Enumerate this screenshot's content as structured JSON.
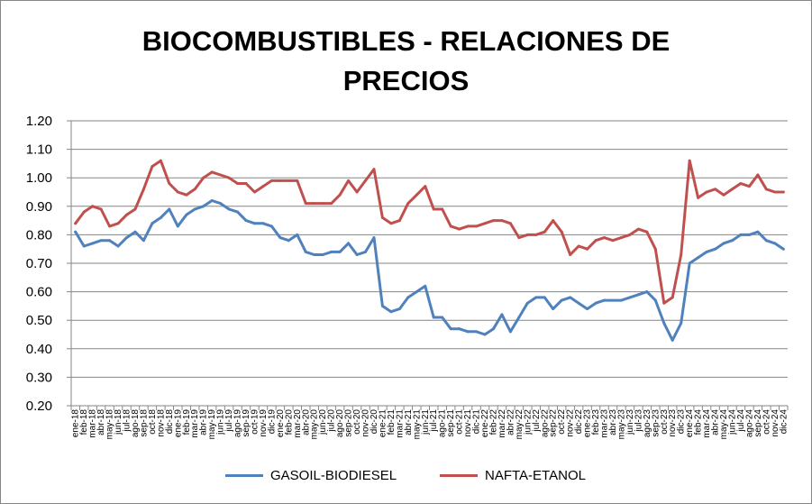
{
  "chart_data": {
    "type": "line",
    "title_line1": "BIOCOMBUSTIBLES - RELACIONES DE",
    "title_line2": "PRECIOS",
    "xlabel": "",
    "ylabel": "",
    "ylim": [
      0.2,
      1.2
    ],
    "yticks": [
      "1.20",
      "1.10",
      "1.00",
      "0.90",
      "0.80",
      "0.70",
      "0.60",
      "0.50",
      "0.40",
      "0.30",
      "0.20"
    ],
    "grid": true,
    "legend_position": "bottom",
    "categories": [
      "ene-18",
      "feb-18",
      "mar-18",
      "abr-18",
      "may-18",
      "jun-18",
      "jul-18",
      "ago-18",
      "sep-18",
      "oct-18",
      "nov-18",
      "dic-18",
      "ene-19",
      "feb-19",
      "mar-19",
      "abr-19",
      "may-19",
      "jun-19",
      "jul-19",
      "ago-19",
      "sep-19",
      "oct-19",
      "nov-19",
      "dic-19",
      "ene-20",
      "feb-20",
      "mar-20",
      "abr-20",
      "may-20",
      "jun-20",
      "jul-20",
      "ago-20",
      "sep-20",
      "oct-20",
      "nov-20",
      "dic-20",
      "ene-21",
      "feb-21",
      "mar-21",
      "abr-21",
      "may-21",
      "jun-21",
      "jul-21",
      "ago-21",
      "sep-21",
      "oct-21",
      "nov-21",
      "dic-21",
      "ene-22",
      "feb-22",
      "mar-22",
      "abr-22",
      "may-22",
      "jun-22",
      "jul-22",
      "ago-22",
      "sep-22",
      "oct-22",
      "nov-22",
      "dic-22",
      "ene-23",
      "feb-23",
      "mar-23",
      "abr-23",
      "may-23",
      "jun-23",
      "jul-23",
      "ago-23",
      "sep-23",
      "oct-23",
      "nov-23",
      "dic-23",
      "ene-24",
      "feb-24",
      "mar-24",
      "abr-24",
      "may-24",
      "jun-24",
      "jul-24",
      "ago-24",
      "sep-24",
      "oct-24",
      "nov-24",
      "dic-24"
    ],
    "series": [
      {
        "name": "GASOIL-BIODIESEL",
        "color": "#4F81BD",
        "values": [
          0.81,
          0.76,
          0.77,
          0.78,
          0.78,
          0.76,
          0.79,
          0.81,
          0.78,
          0.84,
          0.86,
          0.89,
          0.83,
          0.87,
          0.89,
          0.9,
          0.92,
          0.91,
          0.89,
          0.88,
          0.85,
          0.84,
          0.84,
          0.83,
          0.79,
          0.78,
          0.8,
          0.74,
          0.73,
          0.73,
          0.74,
          0.74,
          0.77,
          0.73,
          0.74,
          0.79,
          0.55,
          0.53,
          0.54,
          0.58,
          0.6,
          0.62,
          0.51,
          0.51,
          0.47,
          0.47,
          0.46,
          0.46,
          0.45,
          0.47,
          0.52,
          0.46,
          0.51,
          0.56,
          0.58,
          0.58,
          0.54,
          0.57,
          0.58,
          0.56,
          0.54,
          0.56,
          0.57,
          0.57,
          0.57,
          0.58,
          0.59,
          0.6,
          0.57,
          0.49,
          0.43,
          0.49,
          0.7,
          0.72,
          0.74,
          0.75,
          0.77,
          0.78,
          0.8,
          0.8,
          0.81,
          0.78,
          0.77,
          0.75
        ]
      },
      {
        "name": "NAFTA-ETANOL",
        "color": "#C0504D",
        "values": [
          0.84,
          0.88,
          0.9,
          0.89,
          0.83,
          0.84,
          0.87,
          0.89,
          0.96,
          1.04,
          1.06,
          0.98,
          0.95,
          0.94,
          0.96,
          1.0,
          1.02,
          1.01,
          1.0,
          0.98,
          0.98,
          0.95,
          0.97,
          0.99,
          0.99,
          0.99,
          0.99,
          0.91,
          0.91,
          0.91,
          0.91,
          0.94,
          0.99,
          0.95,
          0.99,
          1.03,
          0.86,
          0.84,
          0.85,
          0.91,
          0.94,
          0.97,
          0.89,
          0.89,
          0.83,
          0.82,
          0.83,
          0.83,
          0.84,
          0.85,
          0.85,
          0.84,
          0.79,
          0.8,
          0.8,
          0.81,
          0.85,
          0.81,
          0.73,
          0.76,
          0.75,
          0.78,
          0.79,
          0.78,
          0.79,
          0.8,
          0.82,
          0.81,
          0.75,
          0.56,
          0.58,
          0.73,
          1.06,
          0.93,
          0.95,
          0.96,
          0.94,
          0.96,
          0.98,
          0.97,
          1.01,
          0.96,
          0.95,
          0.95
        ]
      }
    ]
  }
}
